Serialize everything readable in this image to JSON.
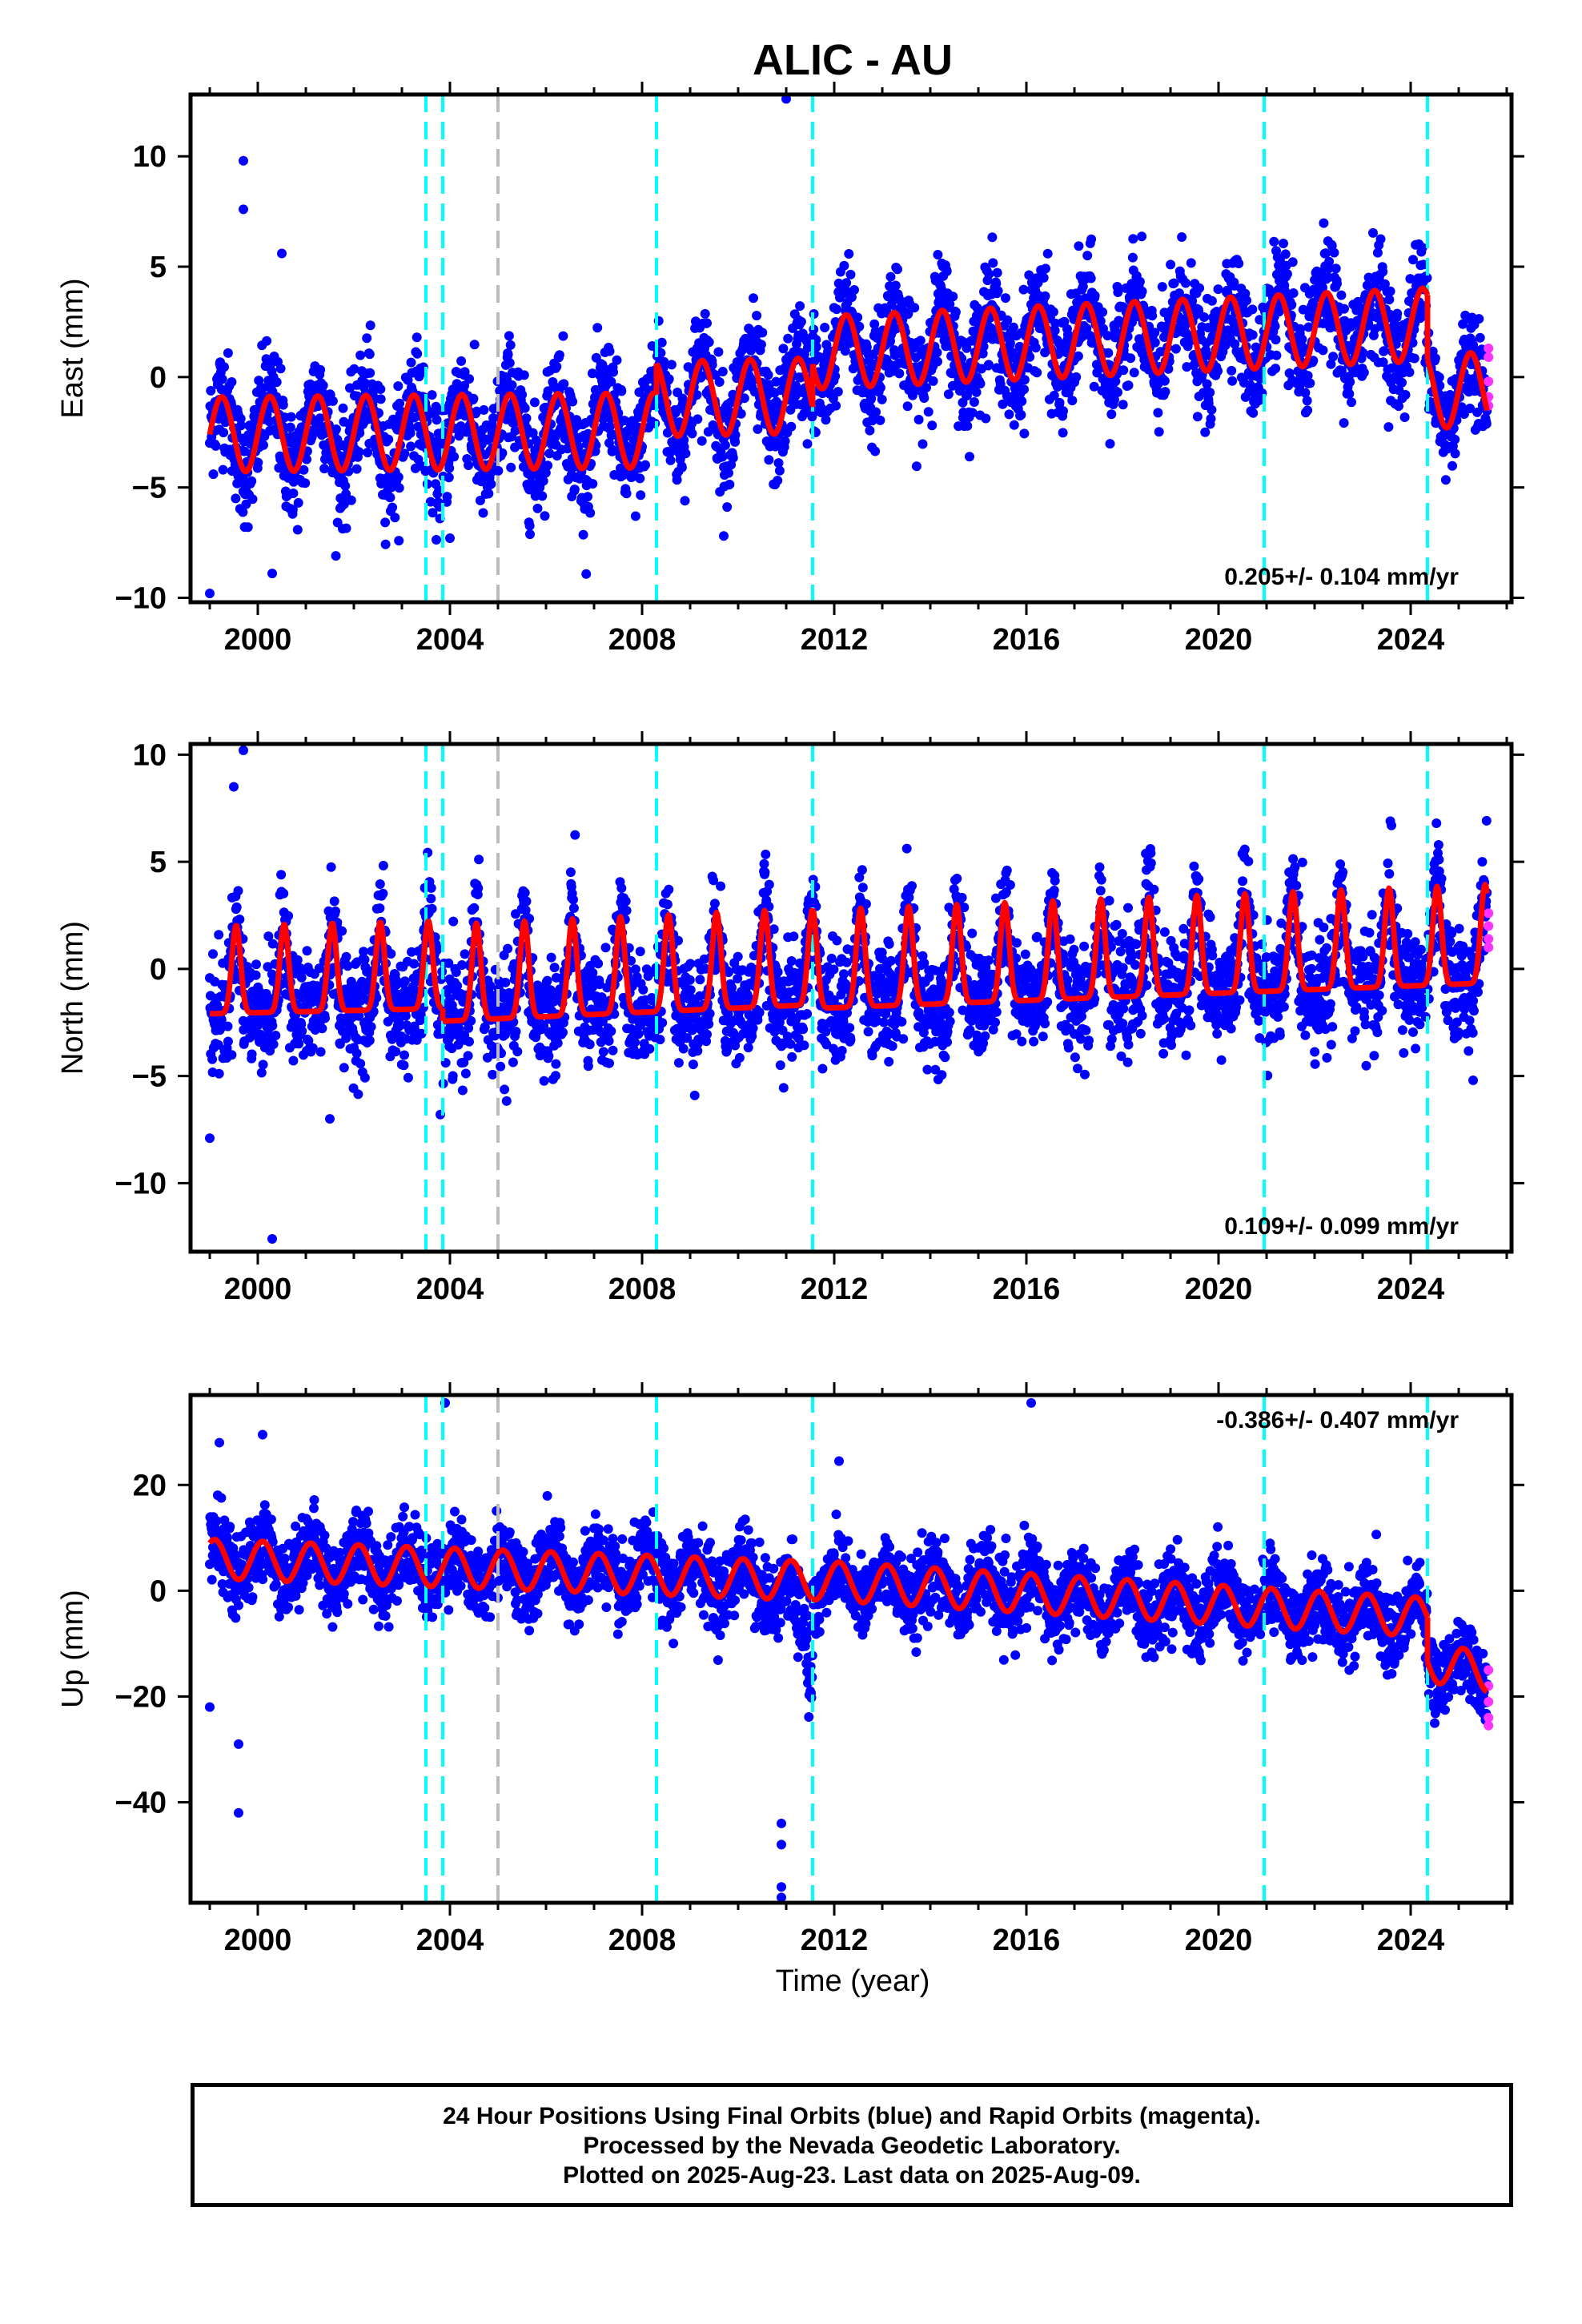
{
  "title": "ALIC - AU",
  "x_axis_label": "Time (year)",
  "footer_lines": [
    "24 Hour Positions Using Final Orbits (blue) and Rapid Orbits (magenta).",
    "Processed by the Nevada Geodetic Laboratory.",
    "Plotted on 2025-Aug-23. Last data on 2025-Aug-09."
  ],
  "colors": {
    "final_orbits": "#0000ff",
    "rapid_orbits": "#ff33ff",
    "model": "#ff0000",
    "equipment_change_lines": "#00ffff",
    "other_event_lines": "#bbbbbb"
  },
  "chart_data": [
    {
      "type": "scatter",
      "panel": "east",
      "ylabel": "East (mm)",
      "xlabel": "",
      "xlim": [
        1998.6,
        2026.1
      ],
      "ylim": [
        -10.2,
        12.8
      ],
      "x_ticks": [
        2000,
        2004,
        2008,
        2012,
        2016,
        2020,
        2024
      ],
      "y_ticks": [
        -10,
        -5,
        0,
        5,
        10
      ],
      "velocity_label": "0.205+/- 0.104 mm/yr",
      "velocity_label_position": "bottom-right",
      "event_lines": [
        {
          "x": 2003.5,
          "kind": "cyan"
        },
        {
          "x": 2003.85,
          "kind": "cyan"
        },
        {
          "x": 2005.0,
          "kind": "gray"
        },
        {
          "x": 2008.3,
          "kind": "cyan"
        },
        {
          "x": 2011.55,
          "kind": "cyan"
        },
        {
          "x": 2020.95,
          "kind": "cyan"
        },
        {
          "x": 2024.35,
          "kind": "cyan"
        }
      ],
      "model_segments": [
        {
          "start": 1999.0,
          "end": 2008.3,
          "offset": -2.6,
          "trend": 0.02,
          "amplitude": 1.7,
          "phase": 0.25
        },
        {
          "start": 2008.3,
          "end": 2011.55,
          "offset": -1.0,
          "trend": 0.05,
          "amplitude": 1.7,
          "phase": 0.25
        },
        {
          "start": 2011.55,
          "end": 2024.35,
          "offset": 1.1,
          "trend": 0.1,
          "amplitude": 1.65,
          "phase": 0.25
        },
        {
          "start": 2024.35,
          "end": 2025.6,
          "offset": -0.6,
          "trend": 0.0,
          "amplitude": 1.7,
          "phase": 0.25
        }
      ],
      "scatter_std": 1.25,
      "outliers": [
        [
          2011.0,
          12.6
        ],
        [
          1999.7,
          9.8
        ],
        [
          1999.7,
          7.6
        ],
        [
          2000.5,
          5.6
        ],
        [
          1999.0,
          -9.8
        ],
        [
          2000.3,
          -8.9
        ],
        [
          2009.7,
          -7.2
        ],
        [
          2004.0,
          -7.3
        ]
      ],
      "rapid_points": [
        [
          2025.62,
          1.3
        ],
        [
          2025.62,
          0.9
        ],
        [
          2025.62,
          -0.2
        ],
        [
          2025.62,
          -0.9
        ],
        [
          2025.62,
          -1.3
        ]
      ]
    },
    {
      "type": "scatter",
      "panel": "north",
      "ylabel": "North (mm)",
      "xlabel": "",
      "xlim": [
        1998.6,
        2026.1
      ],
      "ylim": [
        -13.2,
        10.5
      ],
      "x_ticks": [
        2000,
        2004,
        2008,
        2012,
        2016,
        2020,
        2024
      ],
      "y_ticks": [
        -10,
        -5,
        0,
        5,
        10
      ],
      "velocity_label": "0.109+/- 0.099 mm/yr",
      "velocity_label_position": "bottom-right",
      "event_lines": [
        {
          "x": 2003.5,
          "kind": "cyan"
        },
        {
          "x": 2003.85,
          "kind": "cyan"
        },
        {
          "x": 2005.0,
          "kind": "gray"
        },
        {
          "x": 2008.3,
          "kind": "cyan"
        },
        {
          "x": 2011.55,
          "kind": "cyan"
        },
        {
          "x": 2020.95,
          "kind": "cyan"
        },
        {
          "x": 2024.35,
          "kind": "cyan"
        }
      ],
      "model_segments": [
        {
          "start": 1999.0,
          "end": 2003.85,
          "offset": -1.6,
          "trend": 0.05,
          "amplitude": 4.1,
          "phase": 0.55,
          "spike": true
        },
        {
          "start": 2003.85,
          "end": 2011.55,
          "offset": -1.9,
          "trend": 0.1,
          "amplitude": 4.5,
          "phase": 0.55,
          "spike": true
        },
        {
          "start": 2011.55,
          "end": 2025.6,
          "offset": -1.3,
          "trend": 0.085,
          "amplitude": 4.6,
          "phase": 0.55,
          "spike": true
        }
      ],
      "scatter_std": 1.3,
      "outliers": [
        [
          1999.7,
          10.2
        ],
        [
          1999.5,
          8.5
        ],
        [
          2000.3,
          -12.6
        ],
        [
          1999.0,
          -7.9
        ],
        [
          2003.8,
          -6.8
        ],
        [
          2001.5,
          -7.0
        ],
        [
          2025.3,
          -5.2
        ]
      ],
      "rapid_points": [
        [
          2025.62,
          2.6
        ],
        [
          2025.62,
          2.0
        ],
        [
          2025.62,
          1.4
        ],
        [
          2025.62,
          1.0
        ]
      ]
    },
    {
      "type": "scatter",
      "panel": "up",
      "ylabel": "Up (mm)",
      "xlabel": "Time (year)",
      "xlim": [
        1998.6,
        2026.1
      ],
      "ylim": [
        -59,
        37
      ],
      "x_ticks": [
        2000,
        2004,
        2008,
        2012,
        2016,
        2020,
        2024
      ],
      "y_ticks": [
        -40,
        -20,
        0,
        20
      ],
      "velocity_label": "-0.386+/- 0.407 mm/yr",
      "velocity_label_position": "top-right",
      "event_lines": [
        {
          "x": 2003.5,
          "kind": "cyan"
        },
        {
          "x": 2003.85,
          "kind": "cyan"
        },
        {
          "x": 2005.0,
          "kind": "gray"
        },
        {
          "x": 2008.3,
          "kind": "cyan"
        },
        {
          "x": 2011.55,
          "kind": "cyan"
        },
        {
          "x": 2020.95,
          "kind": "cyan"
        },
        {
          "x": 2024.35,
          "kind": "cyan"
        }
      ],
      "model_segments": [
        {
          "start": 1999.0,
          "end": 2011.55,
          "offset": 6.0,
          "trend": -0.33,
          "amplitude": 3.7,
          "phase": 0.1
        },
        {
          "start": 2011.55,
          "end": 2024.35,
          "offset": 2.0,
          "trend": -0.55,
          "amplitude": 3.7,
          "phase": 0.1
        },
        {
          "start": 2024.35,
          "end": 2025.6,
          "offset": -13.5,
          "trend": -1.5,
          "amplitude": 3.7,
          "phase": 0.1
        }
      ],
      "scatter_std": 3.6,
      "outliers": [
        [
          2003.9,
          35.5
        ],
        [
          2016.1,
          35.5
        ],
        [
          2000.1,
          29.5
        ],
        [
          1999.2,
          28.0
        ],
        [
          2012.1,
          24.5
        ],
        [
          1999.6,
          -29.0
        ],
        [
          1999.6,
          -42.0
        ],
        [
          2010.9,
          -44.0
        ],
        [
          2010.9,
          -48.0
        ],
        [
          2010.9,
          -56.0
        ],
        [
          2010.9,
          -58.0
        ],
        [
          1999.0,
          -22.0
        ]
      ],
      "dip_event": {
        "start": 2010.4,
        "end": 2011.55,
        "depth": 18
      },
      "rapid_points": [
        [
          2025.62,
          -15.0
        ],
        [
          2025.62,
          -18.0
        ],
        [
          2025.62,
          -21.0
        ],
        [
          2025.62,
          -24.0
        ],
        [
          2025.62,
          -25.5
        ]
      ]
    }
  ]
}
